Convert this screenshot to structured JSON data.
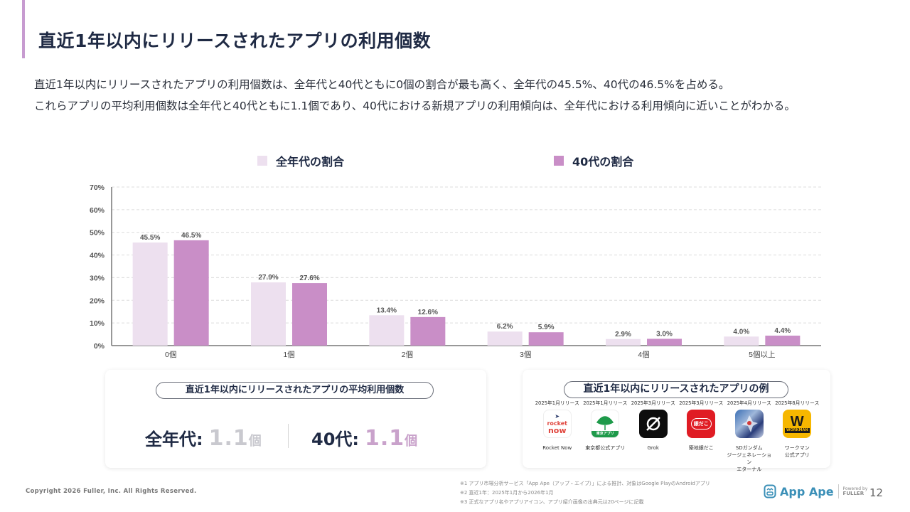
{
  "header": {
    "title": "直近1年以内にリリースされたアプリの利用個数"
  },
  "summary": {
    "line1": "直近1年以内にリリースされたアプリの利用個数は、全年代と40代ともに0個の割合が最も高く、全年代の45.5%、40代の46.5%を占める。",
    "line2": "これらアプリの平均利用個数は全年代と40代ともに1.1個であり、40代における新規アプリの利用傾向は、全年代における利用傾向に近いことがわかる。"
  },
  "colors": {
    "accent": "#c79bd0",
    "series_all": "#ede0ef",
    "series_40s": "#c98ec7",
    "text_dark": "#1f2a44",
    "avg_all_value": "#c9c9cf",
    "avg_40s_value": "#c9a2cb"
  },
  "chart_data": {
    "type": "bar",
    "title": "",
    "xlabel": "",
    "ylabel": "",
    "categories": [
      "0個",
      "1個",
      "2個",
      "3個",
      "4個",
      "5個以上"
    ],
    "series": [
      {
        "name": "全年代の割合",
        "values": [
          45.5,
          27.9,
          13.4,
          6.2,
          2.9,
          4.0
        ]
      },
      {
        "name": "40代の割合",
        "values": [
          46.5,
          27.6,
          12.6,
          5.9,
          3.0,
          4.4
        ]
      }
    ],
    "ylim": [
      0,
      70
    ],
    "yticks": [
      0,
      10,
      20,
      30,
      40,
      50,
      60,
      70
    ],
    "ytick_labels": [
      "0%",
      "10%",
      "20%",
      "30%",
      "40%",
      "50%",
      "60%",
      "70%"
    ],
    "value_suffix": "%",
    "grid": true,
    "legend_position": "top"
  },
  "average_card": {
    "heading": "直近1年以内にリリースされたアプリの平均利用個数",
    "all_label": "全年代:",
    "all_value": "1.1",
    "all_unit": "個",
    "s40_label": "40代:",
    "s40_value": "1.1",
    "s40_unit": "個"
  },
  "apps_card": {
    "heading": "直近1年以内にリリースされたアプリの例",
    "apps": [
      {
        "release": "2025年1月リリース",
        "name": "Rocket Now",
        "icon": "rocket-now-icon"
      },
      {
        "release": "2025年1月リリース",
        "name": "東京都公式アプリ",
        "icon": "tokyo-app-icon",
        "badge": "東京アプリ"
      },
      {
        "release": "2025年3月リリース",
        "name": "Grok",
        "icon": "grok-icon"
      },
      {
        "release": "2025年3月リリース",
        "name": "築地銀だこ",
        "icon": "gindaco-icon",
        "badge": "銀だこ"
      },
      {
        "release": "2025年4月リリース",
        "name": "SDガンダム\nジージェネレーション\nエターナル",
        "icon": "sd-gundam-icon"
      },
      {
        "release": "2025年8月リリース",
        "name": "ワークマン\n公式アプリ",
        "icon": "workman-icon",
        "badge": "WORKMAN"
      }
    ]
  },
  "footer": {
    "copyright": "Copyright 2026 Fuller, Inc. All Rights Reserved.",
    "notes": [
      "※1 アプリ市場分析サービス「App Ape（アップ・エイプ）」による推計、対象はGoogle PlayのAndroidアプリ",
      "※2 直近1年：2025年1月から2026年1月",
      "※3 正式なアプリ名やアプリアイコン、アプリ紹介画像の出典元は20ページに記載"
    ],
    "logo_text": "App Ape",
    "powered_by": "Powered by",
    "fuller": "FULLER",
    "page_number": "12"
  }
}
